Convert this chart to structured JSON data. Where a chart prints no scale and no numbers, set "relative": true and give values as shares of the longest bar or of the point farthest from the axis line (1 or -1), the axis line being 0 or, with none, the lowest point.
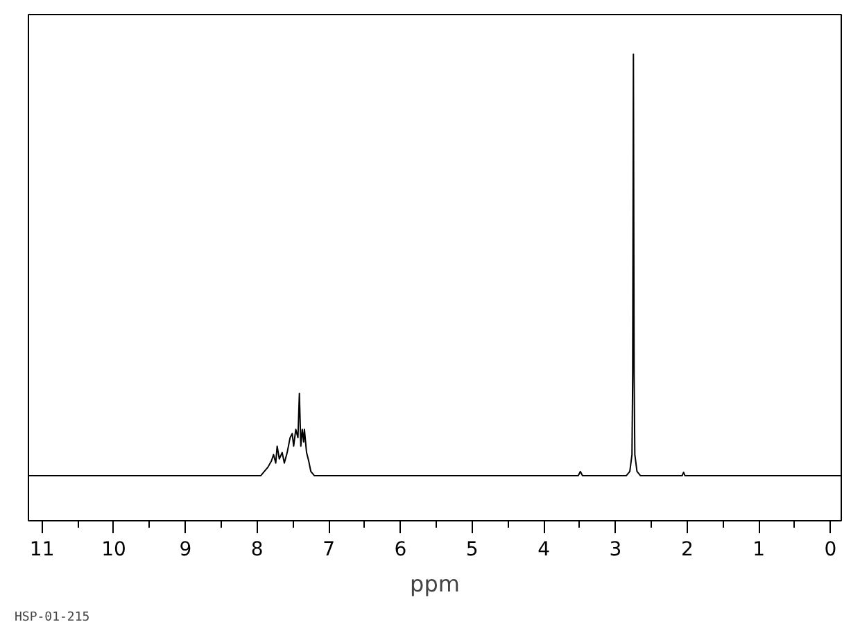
{
  "chart_data": {
    "type": "line",
    "relative": true,
    "xlabel": "ppm",
    "annotations": [
      "HSP-01-215"
    ],
    "xlim": [
      11.19,
      -0.15
    ],
    "xticks": [
      11,
      10,
      9,
      8,
      7,
      6,
      5,
      4,
      3,
      2,
      1,
      0
    ],
    "grid": false,
    "marker": "none",
    "line_style": "solid",
    "series": [
      {
        "color": "#000000",
        "x": [
          11.19,
          7.95,
          7.85,
          7.8,
          7.77,
          7.74,
          7.72,
          7.69,
          7.65,
          7.62,
          7.58,
          7.54,
          7.51,
          7.49,
          7.46,
          7.43,
          7.41,
          7.39,
          7.37,
          7.35,
          7.34,
          7.31,
          7.28,
          7.25,
          7.2,
          3.52,
          3.49,
          3.46,
          2.85,
          2.8,
          2.77,
          2.76,
          2.75,
          2.74,
          2.73,
          2.7,
          2.65,
          2.07,
          2.05,
          2.03,
          -0.15
        ],
        "values": [
          0,
          0,
          0.02,
          0.035,
          0.05,
          0.03,
          0.07,
          0.04,
          0.055,
          0.03,
          0.055,
          0.09,
          0.1,
          0.07,
          0.11,
          0.09,
          0.195,
          0.07,
          0.11,
          0.08,
          0.11,
          0.055,
          0.035,
          0.01,
          0,
          0,
          0.01,
          0,
          0,
          0.01,
          0.05,
          0.24,
          1,
          0.24,
          0.05,
          0.01,
          0,
          0,
          0.008,
          0,
          0
        ]
      }
    ]
  }
}
